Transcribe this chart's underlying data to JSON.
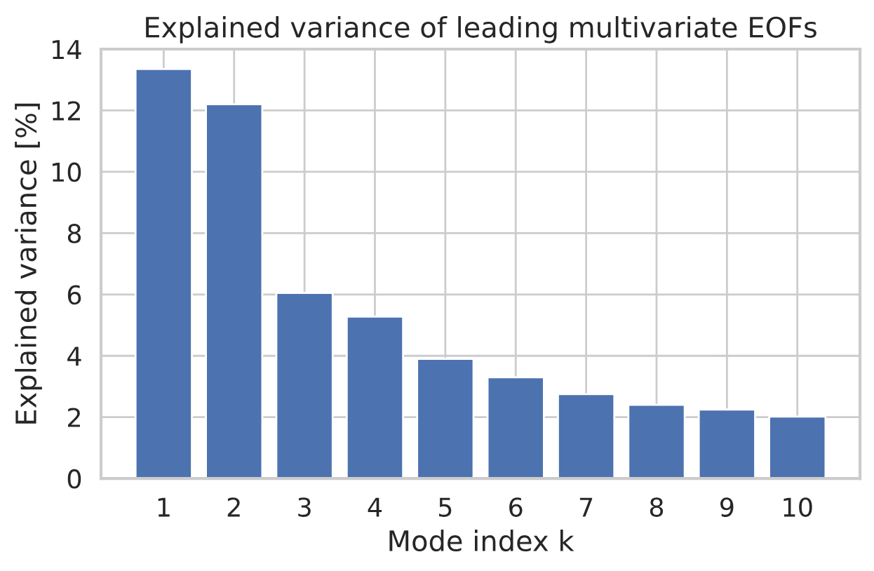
{
  "chart_data": {
    "type": "bar",
    "title": "Explained variance of leading multivariate EOFs",
    "xlabel": "Mode index k",
    "ylabel": "Explained variance [%]",
    "categories": [
      "1",
      "2",
      "3",
      "4",
      "5",
      "6",
      "7",
      "8",
      "9",
      "10"
    ],
    "values": [
      13.35,
      12.2,
      6.05,
      5.28,
      3.9,
      3.3,
      2.75,
      2.4,
      2.25,
      2.02
    ],
    "color": "#4c72b0",
    "ylim": [
      0,
      14
    ],
    "yticks": [
      0,
      2,
      4,
      6,
      8,
      10,
      12,
      14
    ],
    "grid": true
  }
}
